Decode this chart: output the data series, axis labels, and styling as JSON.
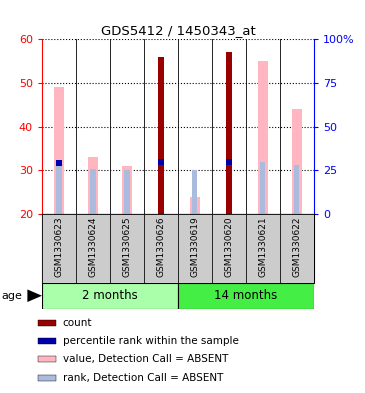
{
  "title": "GDS5412 / 1450343_at",
  "samples": [
    "GSM1330623",
    "GSM1330624",
    "GSM1330625",
    "GSM1330626",
    "GSM1330619",
    "GSM1330620",
    "GSM1330621",
    "GSM1330622"
  ],
  "ylim_left": [
    20,
    60
  ],
  "ylim_right": [
    0,
    100
  ],
  "left_ticks": [
    20,
    30,
    40,
    50,
    60
  ],
  "right_ticks": [
    0,
    25,
    50,
    75,
    100
  ],
  "right_tick_labels": [
    "0",
    "25",
    "50",
    "75",
    "100%"
  ],
  "count_color": "#990000",
  "rank_color": "#0000AA",
  "absent_value_color": "#FFB6C1",
  "absent_rank_color": "#AABBDD",
  "count_data": [
    null,
    null,
    null,
    56,
    null,
    57,
    null,
    null
  ],
  "percentile_data": [
    29,
    null,
    null,
    30,
    null,
    30,
    null,
    null
  ],
  "absent_value_data": [
    49,
    33,
    31,
    null,
    24,
    null,
    55,
    44
  ],
  "absent_rank_data": [
    29,
    26,
    25,
    null,
    25,
    null,
    30,
    28
  ],
  "legend_items": [
    {
      "color": "#990000",
      "label": "count"
    },
    {
      "color": "#0000AA",
      "label": "percentile rank within the sample"
    },
    {
      "color": "#FFB6C1",
      "label": "value, Detection Call = ABSENT"
    },
    {
      "color": "#AABBDD",
      "label": "rank, Detection Call = ABSENT"
    }
  ],
  "group_label_2m": "2 months",
  "group_label_14m": "14 months",
  "group_color_2m": "#AAFFAA",
  "group_color_14m": "#44EE44",
  "sample_bg_color": "#CCCCCC",
  "age_label": "age"
}
